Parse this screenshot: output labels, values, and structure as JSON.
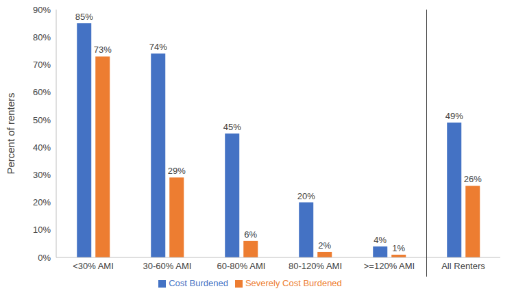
{
  "chart_data": {
    "type": "bar",
    "y_label": "Percent of renters",
    "categories": [
      "<30% AMI",
      "30-60% AMI",
      "60-80% AMI",
      "80-120% AMI",
      ">=120% AMI",
      "All Renters"
    ],
    "series": [
      {
        "name": "Cost Burdened",
        "color": "#4472c4",
        "values": [
          85,
          74,
          45,
          20,
          4,
          49
        ],
        "value_labels": [
          "85%",
          "74%",
          "45%",
          "20%",
          "4%",
          "49%"
        ]
      },
      {
        "name": "Severely Cost Burdened",
        "color": "#ed7d31",
        "values": [
          73,
          29,
          6,
          2,
          1,
          26
        ],
        "value_labels": [
          "73%",
          "29%",
          "6%",
          "2%",
          "1%",
          "26%"
        ]
      }
    ],
    "ylim": [
      0,
      90
    ],
    "yticks": [
      {
        "value": 0,
        "label": "0%"
      },
      {
        "value": 10,
        "label": "10%"
      },
      {
        "value": 20,
        "label": "20%"
      },
      {
        "value": 30,
        "label": "30%"
      },
      {
        "value": 40,
        "label": "40%"
      },
      {
        "value": 50,
        "label": "50%"
      },
      {
        "value": 60,
        "label": "60%"
      },
      {
        "value": 70,
        "label": "70%"
      },
      {
        "value": 80,
        "label": "80%"
      },
      {
        "value": 90,
        "label": "90%"
      }
    ],
    "grid": false,
    "legend": "bottom",
    "data_labels": true
  }
}
